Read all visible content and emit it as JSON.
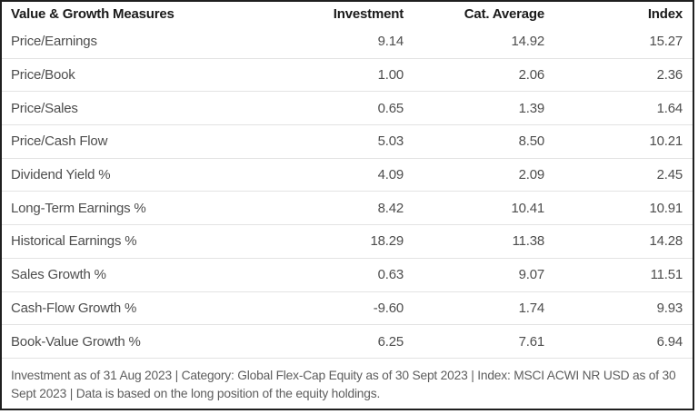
{
  "colors": {
    "outer_border": "#1f1f1f",
    "header_text": "#1a1a1a",
    "row_text": "#4d4d4d",
    "row_separator": "#e3e3e3",
    "footnote_text": "#5d5d5d",
    "background": "#ffffff"
  },
  "table": {
    "title": "Value & Growth Measures",
    "columns": {
      "investment": "Investment",
      "cat_average": "Cat. Average",
      "index": "Index"
    },
    "rows": [
      {
        "label": "Price/Earnings",
        "investment": "9.14",
        "cat_average": "14.92",
        "index": "15.27"
      },
      {
        "label": "Price/Book",
        "investment": "1.00",
        "cat_average": "2.06",
        "index": "2.36"
      },
      {
        "label": "Price/Sales",
        "investment": "0.65",
        "cat_average": "1.39",
        "index": "1.64"
      },
      {
        "label": "Price/Cash Flow",
        "investment": "5.03",
        "cat_average": "8.50",
        "index": "10.21"
      },
      {
        "label": "Dividend Yield %",
        "investment": "4.09",
        "cat_average": "2.09",
        "index": "2.45"
      },
      {
        "label": "Long-Term Earnings %",
        "investment": "8.42",
        "cat_average": "10.41",
        "index": "10.91"
      },
      {
        "label": "Historical Earnings %",
        "investment": "18.29",
        "cat_average": "11.38",
        "index": "14.28"
      },
      {
        "label": "Sales Growth %",
        "investment": "0.63",
        "cat_average": "9.07",
        "index": "11.51"
      },
      {
        "label": "Cash-Flow Growth %",
        "investment": "-9.60",
        "cat_average": "1.74",
        "index": "9.93"
      },
      {
        "label": "Book-Value Growth %",
        "investment": "6.25",
        "cat_average": "7.61",
        "index": "6.94"
      }
    ]
  },
  "footnote": "Investment as of 31 Aug 2023 | Category: Global Flex-Cap Equity as of 30 Sept 2023 | Index: MSCI ACWI NR USD as of 30 Sept 2023 | Data is based on the long position of the equity holdings.",
  "chart_data": {
    "type": "table",
    "title": "Value & Growth Measures",
    "columns": [
      "Value & Growth Measures",
      "Investment",
      "Cat. Average",
      "Index"
    ],
    "rows": [
      [
        "Price/Earnings",
        9.14,
        14.92,
        15.27
      ],
      [
        "Price/Book",
        1.0,
        2.06,
        2.36
      ],
      [
        "Price/Sales",
        0.65,
        1.39,
        1.64
      ],
      [
        "Price/Cash Flow",
        5.03,
        8.5,
        10.21
      ],
      [
        "Dividend Yield %",
        4.09,
        2.09,
        2.45
      ],
      [
        "Long-Term Earnings %",
        8.42,
        10.41,
        10.91
      ],
      [
        "Historical Earnings %",
        18.29,
        11.38,
        14.28
      ],
      [
        "Sales Growth %",
        0.63,
        9.07,
        11.51
      ],
      [
        "Cash-Flow Growth %",
        -9.6,
        1.74,
        9.93
      ],
      [
        "Book-Value Growth %",
        6.25,
        7.61,
        6.94
      ]
    ],
    "footnote": "Investment as of 31 Aug 2023 | Category: Global Flex-Cap Equity as of 30 Sept 2023 | Index: MSCI ACWI NR USD as of 30 Sept 2023 | Data is based on the long position of the equity holdings."
  }
}
